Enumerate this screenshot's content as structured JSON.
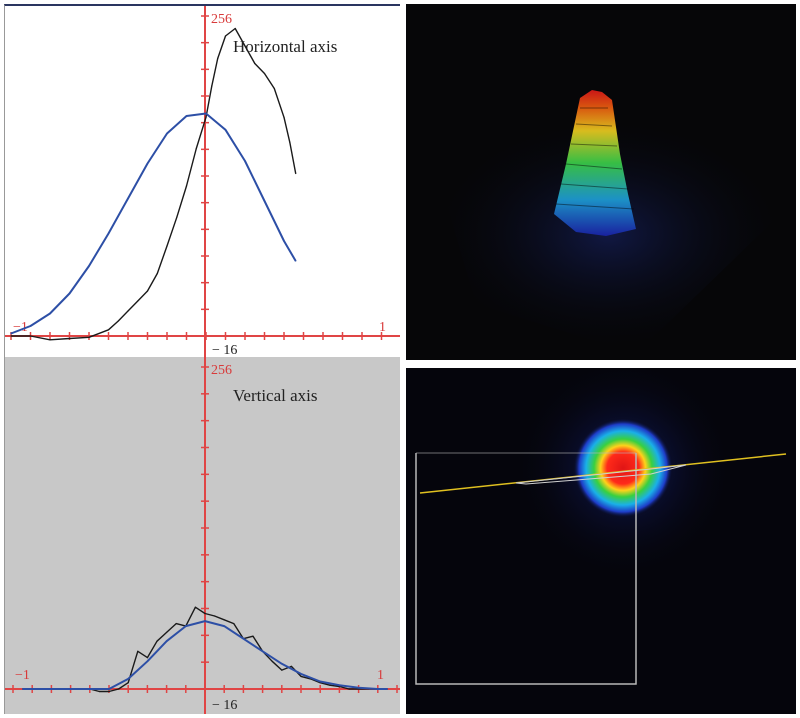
{
  "chart_data": [
    {
      "type": "line",
      "title": "Horizontal axis",
      "x_range": [
        -1,
        1
      ],
      "y_range": [
        -16,
        256
      ],
      "tick_labels": {
        "x_min": "−1",
        "x_max": "1",
        "y_max": "256",
        "y_min": "− 16"
      },
      "background": "#ffffff",
      "series": [
        {
          "color": "#1a1a1a",
          "x": [
            -1.0,
            -0.9,
            -0.8,
            -0.7,
            -0.6,
            -0.5,
            -0.45,
            -0.4,
            -0.35,
            -0.3,
            -0.25,
            -0.2,
            -0.15,
            -0.1,
            -0.05,
            0.0,
            0.03,
            0.06,
            0.1,
            0.15,
            0.2,
            0.25,
            0.3,
            0.35,
            0.4,
            0.43,
            0.46
          ],
          "y": [
            0,
            0,
            -3,
            -2,
            -1,
            5,
            12,
            20,
            28,
            36,
            50,
            72,
            95,
            120,
            150,
            175,
            200,
            222,
            240,
            246,
            232,
            218,
            210,
            198,
            175,
            155,
            130
          ]
        },
        {
          "color": "#2d4fa6",
          "x": [
            -1.0,
            -0.9,
            -0.8,
            -0.7,
            -0.6,
            -0.5,
            -0.4,
            -0.3,
            -0.2,
            -0.1,
            0.0,
            0.1,
            0.2,
            0.3,
            0.4,
            0.46
          ],
          "y": [
            2,
            8,
            18,
            34,
            56,
            82,
            110,
            138,
            162,
            176,
            178,
            165,
            140,
            108,
            76,
            60
          ]
        }
      ]
    },
    {
      "type": "line",
      "title": "Vertical axis",
      "x_range": [
        -1,
        1
      ],
      "y_range": [
        -16,
        256
      ],
      "tick_labels": {
        "x_min": "−1",
        "x_max": "1",
        "y_max": "256",
        "y_min": "− 16"
      },
      "background": "#c8c8c8",
      "series": [
        {
          "color": "#1a1a1a",
          "x": [
            -0.95,
            -0.9,
            -0.85,
            -0.8,
            -0.75,
            -0.7,
            -0.65,
            -0.6,
            -0.55,
            -0.5,
            -0.45,
            -0.4,
            -0.35,
            -0.3,
            -0.25,
            -0.2,
            -0.15,
            -0.1,
            -0.05,
            0.0,
            0.05,
            0.1,
            0.15,
            0.2,
            0.25,
            0.3,
            0.35,
            0.4,
            0.45,
            0.5,
            0.55,
            0.6,
            0.65,
            0.7,
            0.75,
            0.8,
            0.85,
            0.9,
            0.95
          ],
          "y": [
            0,
            0,
            0,
            0,
            0,
            0,
            0,
            0,
            -2,
            -2,
            0,
            5,
            30,
            25,
            38,
            45,
            52,
            50,
            65,
            60,
            58,
            55,
            52,
            40,
            42,
            30,
            22,
            15,
            18,
            10,
            8,
            5,
            3,
            2,
            0,
            0,
            0,
            0,
            0
          ]
        },
        {
          "color": "#2d4fa6",
          "x": [
            -0.95,
            -0.9,
            -0.8,
            -0.7,
            -0.6,
            -0.5,
            -0.4,
            -0.3,
            -0.2,
            -0.1,
            0.0,
            0.1,
            0.2,
            0.3,
            0.4,
            0.5,
            0.6,
            0.7,
            0.8,
            0.9,
            0.95
          ],
          "y": [
            0,
            0,
            0,
            0,
            0,
            0,
            8,
            22,
            38,
            50,
            54,
            50,
            40,
            30,
            20,
            12,
            6,
            3,
            1,
            0,
            0
          ]
        }
      ]
    }
  ]
}
